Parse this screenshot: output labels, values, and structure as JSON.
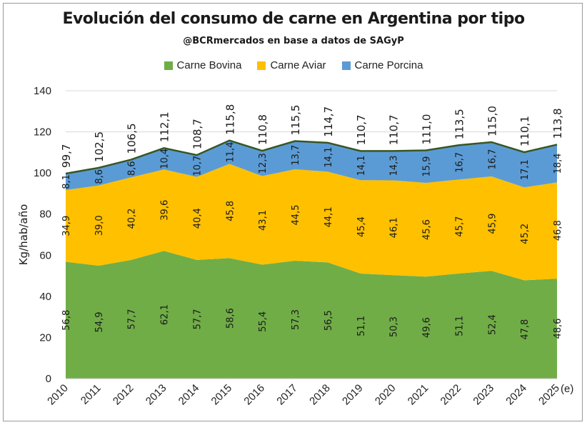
{
  "chart_data": {
    "type": "area",
    "title": "Evolución del consumo de carne en Argentina por tipo",
    "subtitle": "@BCRmercados en base a datos de SAGyP",
    "ylabel": "Kg/hab/año",
    "xlabel": "",
    "ylim": [
      0,
      140
    ],
    "yticks": [
      0,
      20,
      40,
      60,
      80,
      100,
      120,
      140
    ],
    "grid": true,
    "legend_position": "top",
    "categories": [
      "2010",
      "2011",
      "2012",
      "2013",
      "2014",
      "2015",
      "2016",
      "2017",
      "2018",
      "2019",
      "2020",
      "2021",
      "2022",
      "2023",
      "2024",
      "2025"
    ],
    "estimate_note": "(e)",
    "series": [
      {
        "name": "Carne Bovina",
        "color": "#70ad47",
        "values": [
          56.8,
          54.9,
          57.7,
          62.1,
          57.7,
          58.6,
          55.4,
          57.3,
          56.5,
          51.1,
          50.3,
          49.6,
          51.1,
          52.4,
          47.8,
          48.6
        ],
        "labels": [
          "56,8",
          "54,9",
          "57,7",
          "62,1",
          "57,7",
          "58,6",
          "55,4",
          "57,3",
          "56,5",
          "51,1",
          "50,3",
          "49,6",
          "51,1",
          "52,4",
          "47,8",
          "48,6"
        ]
      },
      {
        "name": "Carne Aviar",
        "color": "#ffc000",
        "values": [
          34.9,
          39.0,
          40.2,
          39.6,
          40.4,
          45.8,
          43.1,
          44.5,
          44.1,
          45.4,
          46.1,
          45.6,
          45.7,
          45.9,
          45.2,
          46.8
        ],
        "labels": [
          "34,9",
          "39,0",
          "40,2",
          "39,6",
          "40,4",
          "45,8",
          "43,1",
          "44,5",
          "44,1",
          "45,4",
          "46,1",
          "45,6",
          "45,7",
          "45,9",
          "45,2",
          "46,8"
        ]
      },
      {
        "name": "Carne Porcina",
        "color": "#5b9bd5",
        "values": [
          8.1,
          8.6,
          8.6,
          10.4,
          10.7,
          11.4,
          12.3,
          13.7,
          14.1,
          14.1,
          14.3,
          15.9,
          16.7,
          16.7,
          17.1,
          18.4
        ],
        "labels": [
          "8,1",
          "8,6",
          "8,6",
          "10,4",
          "10,7",
          "11,4",
          "12,3",
          "13,7",
          "14,1",
          "14,1",
          "14,3",
          "15,9",
          "16,7",
          "16,7",
          "17,1",
          "18,4"
        ]
      }
    ],
    "totals": [
      99.7,
      102.5,
      106.5,
      112.1,
      108.7,
      115.8,
      110.8,
      115.5,
      114.7,
      110.7,
      110.7,
      111.0,
      113.5,
      115.0,
      110.1,
      113.8
    ],
    "total_labels": [
      "99,7",
      "102,5",
      "106,5",
      "112,1",
      "108,7",
      "115,8",
      "110,8",
      "115,5",
      "114,7",
      "110,7",
      "110,7",
      "111,0",
      "113,5",
      "115,0",
      "110,1",
      "113,8"
    ],
    "total_line_color": "#375623"
  }
}
